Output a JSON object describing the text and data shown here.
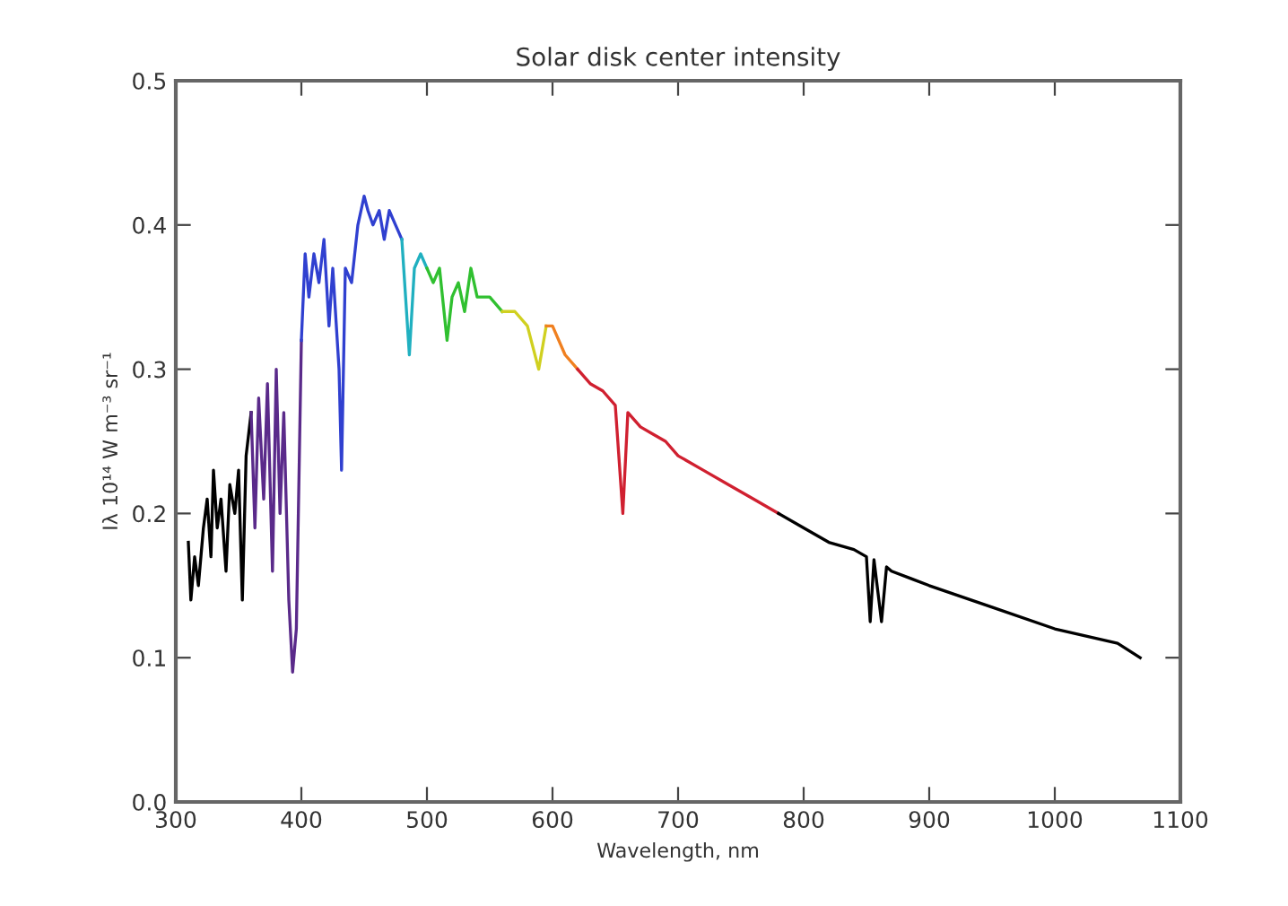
{
  "chart_data": {
    "type": "line",
    "title": "Solar disk center intensity",
    "xlabel": "Wavelength, nm",
    "ylabel": "Iλ 10¹⁴ W m⁻³ sr⁻¹",
    "xlim": [
      300,
      1100
    ],
    "xticks": [
      300,
      400,
      500,
      600,
      700,
      800,
      900,
      1000,
      1100
    ],
    "ylim": [
      0,
      0.5
    ],
    "yticks": [
      {
        "value": 0,
        "label": "0.0"
      },
      0.1,
      0.2,
      0.3,
      0.4,
      0.5
    ],
    "grid": false,
    "legend": false,
    "marker": "none",
    "line_style": "solid",
    "series": [
      {
        "color": "#000000",
        "x": [
          310,
          312,
          315,
          318,
          322,
          325,
          328,
          330,
          333,
          336,
          340,
          343,
          347,
          350,
          353,
          356,
          360
        ],
        "values": [
          0.18,
          0.14,
          0.17,
          0.15,
          0.19,
          0.21,
          0.17,
          0.23,
          0.19,
          0.21,
          0.16,
          0.22,
          0.2,
          0.23,
          0.14,
          0.24,
          0.27
        ]
      },
      {
        "color": "#5a2a8a",
        "x": [
          360,
          363,
          366,
          370,
          373,
          377,
          380,
          383,
          386,
          390,
          393,
          396,
          400
        ],
        "values": [
          0.27,
          0.19,
          0.28,
          0.21,
          0.29,
          0.16,
          0.3,
          0.2,
          0.27,
          0.14,
          0.09,
          0.12,
          0.32
        ]
      },
      {
        "color": "#3040d0",
        "x": [
          400,
          403,
          406,
          410,
          414,
          418,
          422,
          425,
          430,
          432,
          435,
          440,
          445,
          450,
          453,
          457,
          462,
          466,
          470,
          475,
          480
        ],
        "values": [
          0.32,
          0.38,
          0.35,
          0.38,
          0.36,
          0.39,
          0.33,
          0.37,
          0.3,
          0.23,
          0.37,
          0.36,
          0.4,
          0.42,
          0.41,
          0.4,
          0.41,
          0.39,
          0.41,
          0.4,
          0.39
        ]
      },
      {
        "color": "#20b0c0",
        "x": [
          480,
          486,
          490,
          495,
          500
        ],
        "values": [
          0.39,
          0.31,
          0.37,
          0.38,
          0.37
        ]
      },
      {
        "color": "#30c030",
        "x": [
          500,
          505,
          510,
          516,
          520,
          525,
          530,
          535,
          540,
          550,
          560
        ],
        "values": [
          0.37,
          0.36,
          0.37,
          0.32,
          0.35,
          0.36,
          0.34,
          0.37,
          0.35,
          0.35,
          0.34
        ]
      },
      {
        "color": "#d0d020",
        "x": [
          560,
          570,
          580,
          589,
          595
        ],
        "values": [
          0.34,
          0.34,
          0.33,
          0.3,
          0.33
        ]
      },
      {
        "color": "#f08020",
        "x": [
          595,
          600,
          610,
          620
        ],
        "values": [
          0.33,
          0.33,
          0.31,
          0.3
        ]
      },
      {
        "color": "#d02030",
        "x": [
          620,
          630,
          640,
          650,
          656,
          660,
          670,
          680,
          690,
          700,
          720,
          740,
          760,
          780
        ],
        "values": [
          0.3,
          0.29,
          0.285,
          0.275,
          0.2,
          0.27,
          0.26,
          0.255,
          0.25,
          0.24,
          0.23,
          0.22,
          0.21,
          0.2
        ]
      },
      {
        "color": "#000000",
        "x": [
          780,
          800,
          820,
          840,
          850,
          853,
          856,
          862,
          866,
          870,
          900,
          950,
          1000,
          1050,
          1068
        ],
        "values": [
          0.2,
          0.19,
          0.18,
          0.175,
          0.17,
          0.125,
          0.168,
          0.125,
          0.163,
          0.16,
          0.15,
          0.135,
          0.12,
          0.11,
          0.1
        ]
      }
    ]
  }
}
